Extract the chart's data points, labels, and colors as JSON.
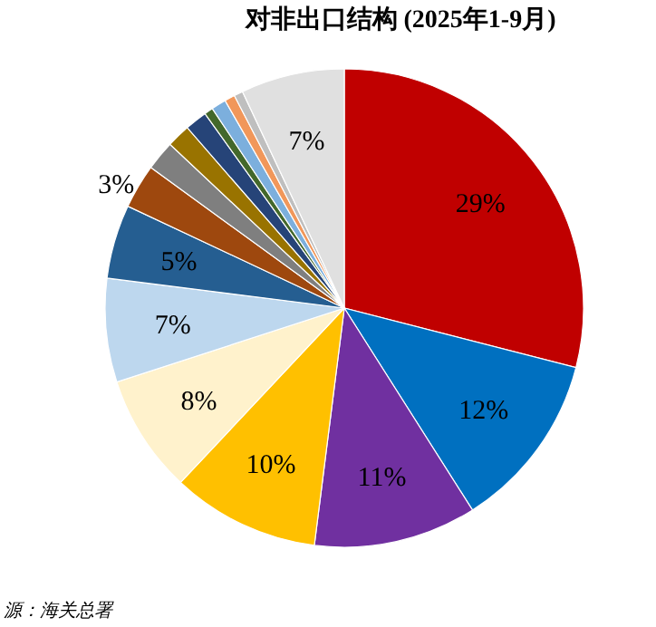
{
  "chart_data": {
    "type": "pie",
    "title": "对非出口结构 (2025年1-9月)",
    "categories": [
      null,
      null,
      null,
      null,
      null,
      null,
      null,
      null,
      null,
      null,
      null,
      null,
      null,
      null,
      null,
      null
    ],
    "values": [
      29,
      12,
      11,
      10,
      8,
      7,
      5,
      3,
      2,
      1.6,
      1.5,
      0.6,
      1,
      0.7,
      0.6,
      7
    ],
    "value_labels": [
      "29%",
      "12%",
      "11%",
      "10%",
      "8%",
      "7%",
      "5%",
      "3%",
      null,
      null,
      null,
      null,
      null,
      null,
      null,
      "7%"
    ],
    "colors": [
      "#c00000",
      "#0070c0",
      "#7030a0",
      "#ffc000",
      "#fff2cc",
      "#bdd7ee",
      "#255e91",
      "#9e480e",
      "#7f7f7f",
      "#997300",
      "#264478",
      "#43682b",
      "#7cafdd",
      "#f1975a",
      "#bfbfbf",
      "#e0e0e0"
    ],
    "annotations": [
      "源：海关总署"
    ]
  }
}
